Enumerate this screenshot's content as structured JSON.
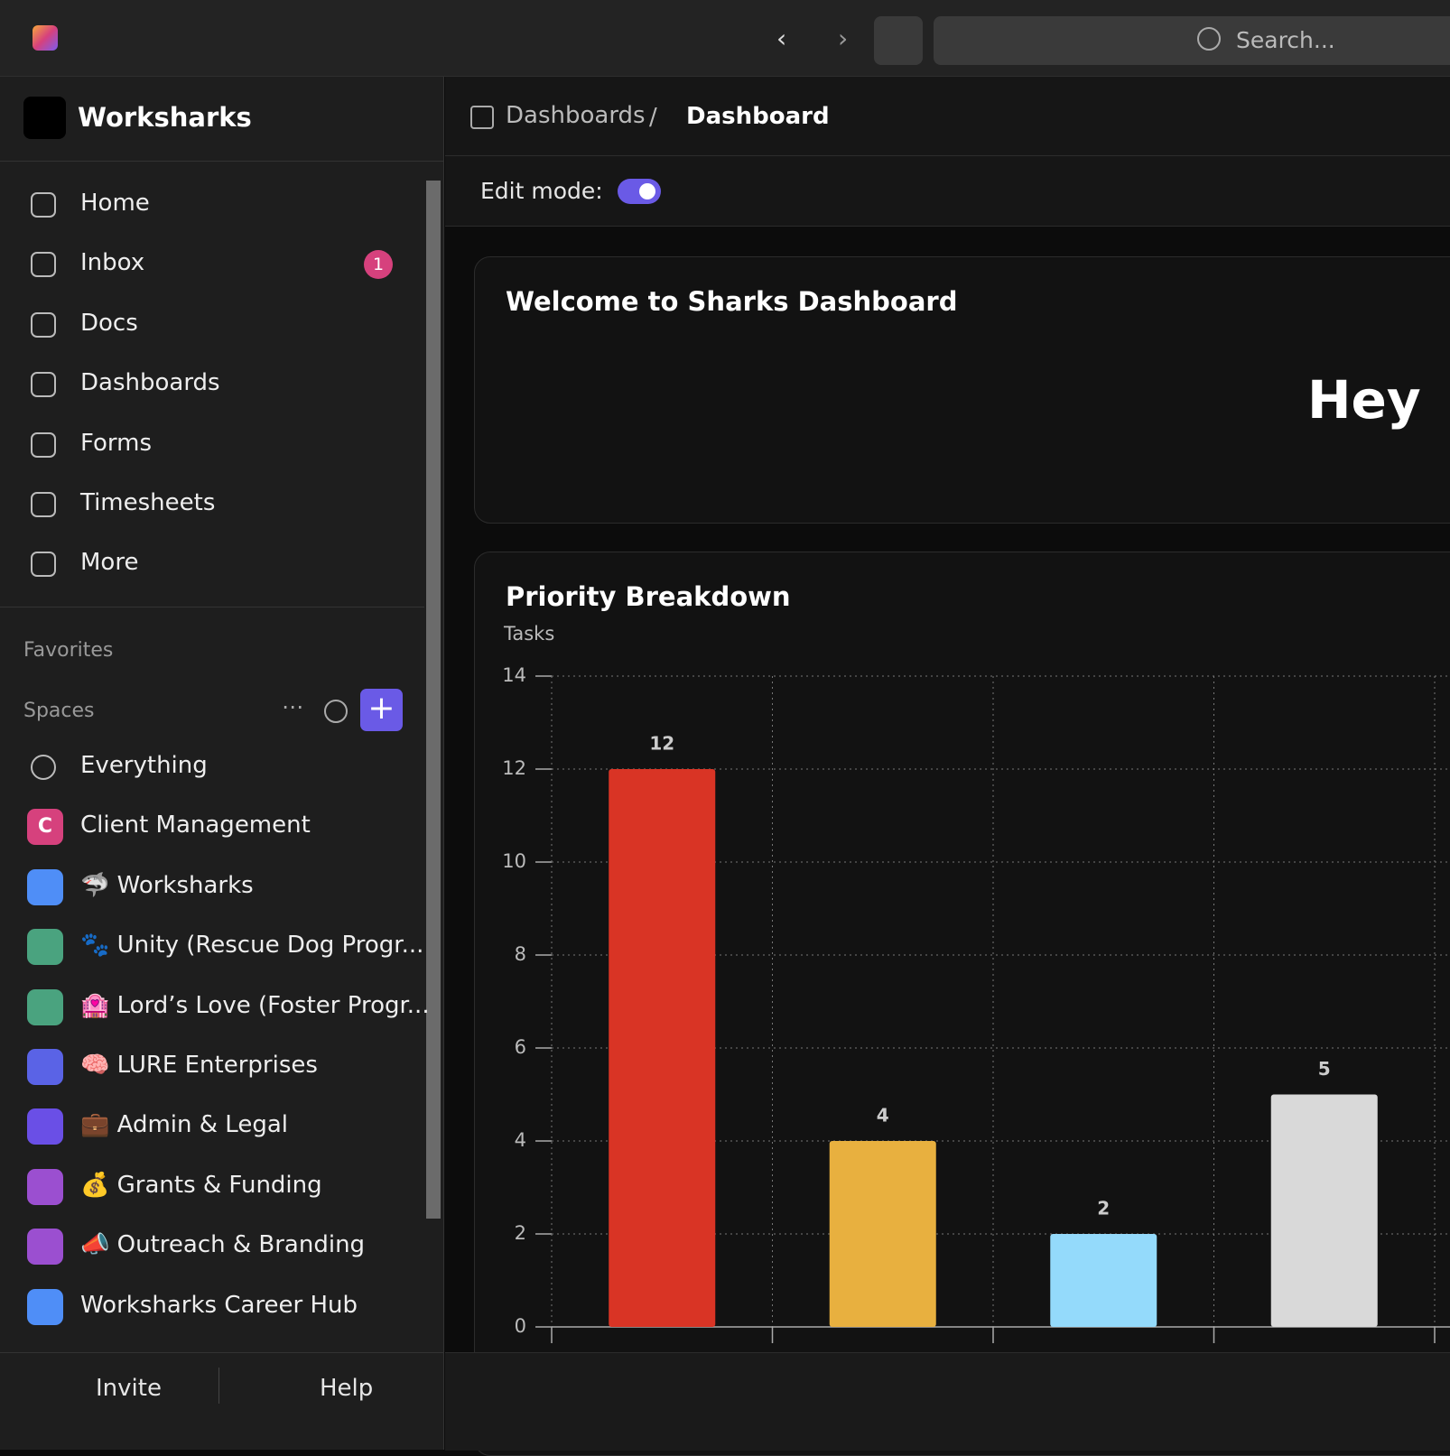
{
  "topbar": {
    "search": "Search..."
  },
  "sidebar": {
    "workspace": "Worksharks",
    "nav": [
      {
        "label": "Home"
      },
      {
        "label": "Inbox",
        "badge": "1"
      },
      {
        "label": "Docs"
      },
      {
        "label": "Dashboards"
      },
      {
        "label": "Forms"
      },
      {
        "label": "Timesheets"
      },
      {
        "label": "More"
      }
    ],
    "favorites": "Favorites",
    "spaces_label": "Spaces",
    "spaces": [
      {
        "label": "Everything"
      },
      {
        "label": "Client Management",
        "letter": "C",
        "color": "#d6417d"
      },
      {
        "label": "🦈 Worksharks",
        "color": "#4f8ef7"
      },
      {
        "label": "🐾 Unity (Rescue Dog Progr...",
        "color": "#4aa37f"
      },
      {
        "label": "🏩 Lord’s Love (Foster Progr...",
        "color": "#4aa37f"
      },
      {
        "label": "🧠 LURE Enterprises",
        "color": "#5a63e6"
      },
      {
        "label": "💼 Admin & Legal",
        "color": "#6a4fe6"
      },
      {
        "label": "💰 Grants & Funding",
        "color": "#9b4fd0"
      },
      {
        "label": "📣 Outreach & Branding",
        "color": "#9b4fd0"
      },
      {
        "label": "Worksharks Career Hub",
        "color": "#4f8ef7"
      }
    ],
    "footer": {
      "invite": "Invite",
      "help": "Help"
    }
  },
  "breadcrumb": {
    "parent": "Dashboards",
    "current": "Dashboard"
  },
  "edit_mode": "Edit mode:",
  "welcome": {
    "title": "Welcome to Sharks Dashboard",
    "text": "Hey"
  },
  "chart_data": {
    "type": "bar",
    "title": "Priority Breakdown",
    "y_label": "Tasks",
    "categories": [
      null,
      null,
      null,
      null
    ],
    "values": [
      12,
      4,
      2,
      5
    ],
    "colors": [
      "#d93425",
      "#e8b03f",
      "#94dafb",
      "#d9d9d9"
    ],
    "ylim": [
      0,
      14
    ],
    "yticks": [
      0,
      2,
      4,
      6,
      8,
      10,
      12,
      14
    ],
    "grid": true
  }
}
